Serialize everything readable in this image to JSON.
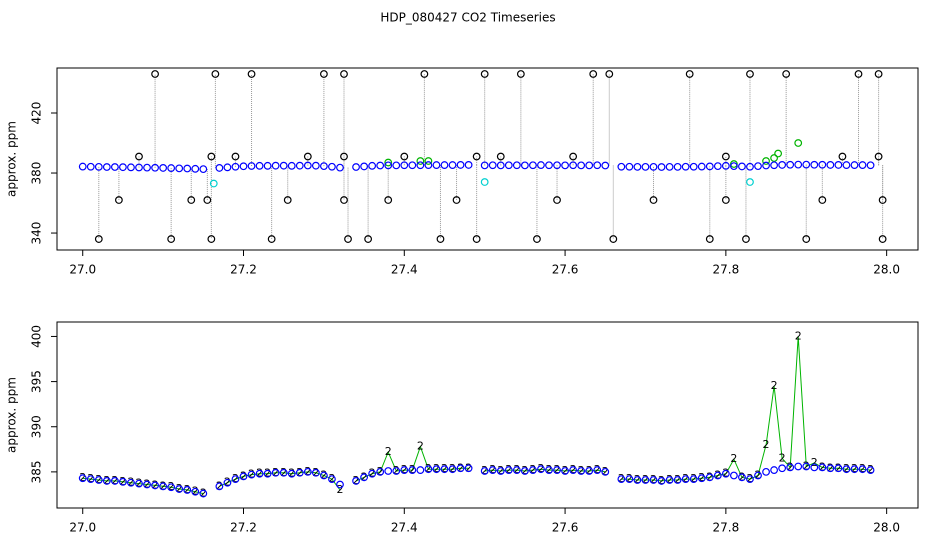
{
  "chart_data": [
    {
      "type": "scatter",
      "title": "HDP_080427  CO2 Timeseries",
      "ylabel": "approx. ppm",
      "xlim": [
        26.968,
        28.039
      ],
      "ylim": [
        328.7,
        450
      ],
      "xticks": [
        {
          "value": 27,
          "label": "27.0"
        },
        27.2,
        27.4,
        27.6,
        27.8,
        {
          "value": 28,
          "label": "28.0"
        }
      ],
      "yticks": [
        340,
        380,
        420
      ],
      "x": [
        27,
        27.01,
        27.02,
        27.03,
        27.04,
        27.05,
        27.06,
        27.07,
        27.08,
        27.09,
        27.1,
        27.11,
        27.12,
        27.13,
        27.14,
        27.15,
        27.16,
        27.17,
        27.18,
        27.19,
        27.2,
        27.21,
        27.22,
        27.23,
        27.24,
        27.25,
        27.26,
        27.27,
        27.28,
        27.29,
        27.3,
        27.31,
        27.32,
        27.33,
        27.34,
        27.35,
        27.36,
        27.37,
        27.38,
        27.39,
        27.4,
        27.41,
        27.42,
        27.43,
        27.44,
        27.45,
        27.46,
        27.47,
        27.48,
        27.49,
        27.5,
        27.51,
        27.52,
        27.53,
        27.54,
        27.55,
        27.56,
        27.57,
        27.58,
        27.59,
        27.6,
        27.61,
        27.62,
        27.63,
        27.64,
        27.65,
        27.66,
        27.67,
        27.68,
        27.69,
        27.7,
        27.71,
        27.72,
        27.73,
        27.74,
        27.75,
        27.76,
        27.77,
        27.78,
        27.79,
        27.8,
        27.81,
        27.82,
        27.83,
        27.84,
        27.85,
        27.86,
        27.87,
        27.88,
        27.89,
        27.9,
        27.91,
        27.92,
        27.93,
        27.94,
        27.95,
        27.96,
        27.97,
        27.98
      ],
      "series": [
        {
          "style": "drop",
          "color": "#000000",
          "x": [
            27.09,
            27.165,
            27.21,
            27.3,
            27.325,
            27.425,
            27.5,
            27.545,
            27.635,
            27.655,
            27.755,
            27.83,
            27.875,
            27.965,
            27.99,
            27.02,
            27.11,
            27.16,
            27.235,
            27.33,
            27.355,
            27.445,
            27.49,
            27.565,
            27.66,
            27.78,
            27.825,
            27.9,
            27.995,
            27.045,
            27.135,
            27.155,
            27.255,
            27.325,
            27.38,
            27.465,
            27.59,
            27.71,
            27.8,
            27.92,
            27.995,
            27.07,
            27.16,
            27.19,
            27.28,
            27.325,
            27.4,
            27.49,
            27.52,
            27.61,
            27.8,
            27.945,
            27.99
          ],
          "values": [
            446,
            446,
            446,
            446,
            446,
            446,
            446,
            446,
            446,
            446,
            446,
            446,
            446,
            446,
            446,
            336,
            336,
            336,
            336,
            336,
            336,
            336,
            336,
            336,
            336,
            336,
            336,
            336,
            336,
            362,
            362,
            362,
            362,
            362,
            362,
            362,
            362,
            362,
            362,
            362,
            362,
            391,
            391,
            391,
            391,
            391,
            391,
            391,
            391,
            391,
            391,
            391,
            391
          ]
        },
        {
          "style": "points",
          "color": "#00b400",
          "x": [
            27.38,
            27.42,
            27.43,
            27.81,
            27.85,
            27.86,
            27.865,
            27.89
          ],
          "values": [
            387,
            388,
            388,
            386,
            388,
            390,
            393,
            400
          ]
        },
        {
          "style": "points",
          "color": "#00d0d0",
          "x": [
            27.163,
            27.5,
            27.83
          ],
          "values": [
            373,
            374,
            374
          ]
        },
        {
          "style": "points",
          "color": "#0000ff",
          "values": [
            384.3,
            384.2,
            384.1,
            384.0,
            384.0,
            383.9,
            383.8,
            383.7,
            383.6,
            383.5,
            383.4,
            383.3,
            383.1,
            383.0,
            382.8,
            382.6,
            null,
            383.4,
            383.8,
            384.2,
            384.5,
            384.7,
            384.8,
            384.8,
            384.9,
            384.9,
            384.8,
            384.9,
            385.0,
            384.9,
            384.6,
            384.2,
            383.6,
            null,
            384.0,
            384.4,
            384.8,
            385.0,
            385.1,
            385.1,
            385.2,
            385.2,
            385.2,
            385.3,
            385.3,
            385.3,
            385.3,
            385.4,
            385.4,
            null,
            385.1,
            385.2,
            385.1,
            385.2,
            385.2,
            385.1,
            385.2,
            385.3,
            385.2,
            385.2,
            385.1,
            385.2,
            385.1,
            385.1,
            385.2,
            385.0,
            null,
            384.2,
            384.2,
            384.1,
            384.1,
            384.1,
            384.0,
            384.1,
            384.1,
            384.2,
            384.2,
            384.3,
            384.4,
            384.6,
            384.8,
            384.6,
            384.4,
            384.2,
            384.6,
            385.0,
            385.2,
            385.4,
            385.5,
            385.6,
            385.6,
            385.5,
            385.5,
            385.4,
            385.4,
            385.3,
            385.3,
            385.3,
            385.2
          ]
        }
      ]
    },
    {
      "type": "scatter",
      "ylabel": "approx. ppm",
      "xlim": [
        26.968,
        28.039
      ],
      "ylim": [
        381,
        401.6
      ],
      "xticks": [
        {
          "value": 27,
          "label": "27.0"
        },
        27.2,
        27.4,
        27.6,
        27.8,
        {
          "value": 28,
          "label": "28.0"
        }
      ],
      "yticks": [
        385,
        390,
        395,
        400
      ],
      "x": [
        27,
        27.01,
        27.02,
        27.03,
        27.04,
        27.05,
        27.06,
        27.07,
        27.08,
        27.09,
        27.1,
        27.11,
        27.12,
        27.13,
        27.14,
        27.15,
        27.16,
        27.17,
        27.18,
        27.19,
        27.2,
        27.21,
        27.22,
        27.23,
        27.24,
        27.25,
        27.26,
        27.27,
        27.28,
        27.29,
        27.3,
        27.31,
        27.32,
        27.33,
        27.34,
        27.35,
        27.36,
        27.37,
        27.38,
        27.39,
        27.4,
        27.41,
        27.42,
        27.43,
        27.44,
        27.45,
        27.46,
        27.47,
        27.48,
        27.49,
        27.5,
        27.51,
        27.52,
        27.53,
        27.54,
        27.55,
        27.56,
        27.57,
        27.58,
        27.59,
        27.6,
        27.61,
        27.62,
        27.63,
        27.64,
        27.65,
        27.66,
        27.67,
        27.68,
        27.69,
        27.7,
        27.71,
        27.72,
        27.73,
        27.74,
        27.75,
        27.76,
        27.77,
        27.78,
        27.79,
        27.8,
        27.81,
        27.82,
        27.83,
        27.84,
        27.85,
        27.86,
        27.87,
        27.88,
        27.89,
        27.9,
        27.91,
        27.92,
        27.93,
        27.94,
        27.95,
        27.96,
        27.97,
        27.98
      ],
      "series": [
        {
          "style": "line",
          "color": "#00b400",
          "marker": "2",
          "values": [
            384.3,
            384.2,
            384.1,
            384.0,
            384.0,
            383.9,
            383.8,
            383.7,
            383.6,
            383.5,
            383.4,
            383.3,
            383.1,
            383.0,
            382.8,
            382.6,
            null,
            383.4,
            383.8,
            384.2,
            384.5,
            384.7,
            384.8,
            384.8,
            384.9,
            384.9,
            384.8,
            384.9,
            385.0,
            384.9,
            384.6,
            384.2,
            383.0,
            null,
            384.0,
            384.4,
            384.8,
            385.0,
            387.2,
            385.1,
            385.2,
            385.2,
            387.8,
            385.3,
            385.3,
            385.3,
            385.3,
            385.4,
            385.4,
            null,
            385.1,
            385.2,
            385.1,
            385.2,
            385.2,
            385.1,
            385.2,
            385.3,
            385.2,
            385.2,
            385.1,
            385.2,
            385.1,
            385.1,
            385.2,
            385.0,
            null,
            384.2,
            384.2,
            384.1,
            384.1,
            384.1,
            384.0,
            384.1,
            384.1,
            384.2,
            384.2,
            384.3,
            384.4,
            384.6,
            384.8,
            386.4,
            384.4,
            384.2,
            384.6,
            388.0,
            394.5,
            386.5,
            385.5,
            400.0,
            385.6,
            386.0,
            385.5,
            385.4,
            385.4,
            385.3,
            385.3,
            385.3,
            385.2
          ]
        },
        {
          "style": "points",
          "color": "#0000ff",
          "values": [
            384.3,
            384.2,
            384.1,
            384.0,
            384.0,
            383.9,
            383.8,
            383.7,
            383.6,
            383.5,
            383.4,
            383.3,
            383.1,
            383.0,
            382.8,
            382.6,
            null,
            383.4,
            383.8,
            384.2,
            384.5,
            384.7,
            384.8,
            384.8,
            384.9,
            384.9,
            384.8,
            384.9,
            385.0,
            384.9,
            384.6,
            384.2,
            383.6,
            null,
            384.0,
            384.4,
            384.8,
            385.0,
            385.1,
            385.1,
            385.2,
            385.2,
            385.2,
            385.3,
            385.3,
            385.3,
            385.3,
            385.4,
            385.4,
            null,
            385.1,
            385.2,
            385.1,
            385.2,
            385.2,
            385.1,
            385.2,
            385.3,
            385.2,
            385.2,
            385.1,
            385.2,
            385.1,
            385.1,
            385.2,
            385.0,
            null,
            384.2,
            384.2,
            384.1,
            384.1,
            384.1,
            384.0,
            384.1,
            384.1,
            384.2,
            384.2,
            384.3,
            384.4,
            384.6,
            384.8,
            384.6,
            384.4,
            384.2,
            384.6,
            385.0,
            385.2,
            385.4,
            385.5,
            385.6,
            385.6,
            385.5,
            385.5,
            385.4,
            385.4,
            385.3,
            385.3,
            385.3,
            385.2
          ]
        }
      ]
    }
  ]
}
